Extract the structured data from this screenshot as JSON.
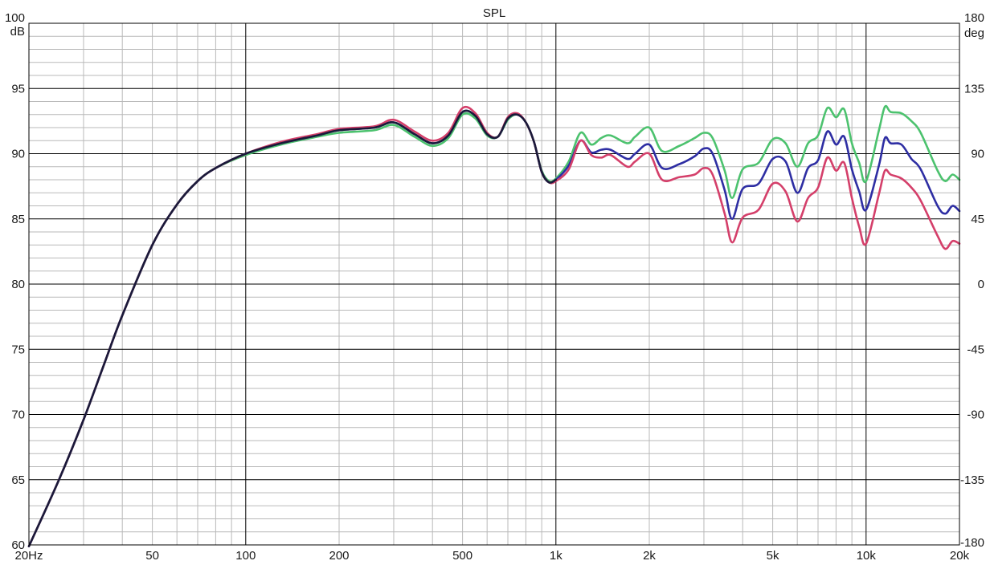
{
  "chart_data": {
    "type": "line",
    "title": "SPL",
    "xscale": "log",
    "xlim": [
      20,
      20000
    ],
    "ylim": [
      60,
      100
    ],
    "y2lim": [
      -180,
      180
    ],
    "grid": true,
    "y_unit": "dB",
    "y2_unit": "deg",
    "x_ticks": [
      {
        "value": 20,
        "label": "20Hz"
      },
      {
        "value": 50,
        "label": "50"
      },
      {
        "value": 100,
        "label": "100"
      },
      {
        "value": 200,
        "label": "200"
      },
      {
        "value": 500,
        "label": "500"
      },
      {
        "value": 1000,
        "label": "1k"
      },
      {
        "value": 2000,
        "label": "2k"
      },
      {
        "value": 5000,
        "label": "5k"
      },
      {
        "value": 10000,
        "label": "10k"
      },
      {
        "value": 20000,
        "label": "20k"
      }
    ],
    "y_ticks": [
      {
        "value": 100,
        "label": "100"
      },
      {
        "value": 95,
        "label": "95"
      },
      {
        "value": 90,
        "label": "90"
      },
      {
        "value": 85,
        "label": "85"
      },
      {
        "value": 80,
        "label": "80"
      },
      {
        "value": 75,
        "label": "75"
      },
      {
        "value": 70,
        "label": "70"
      },
      {
        "value": 65,
        "label": "65"
      },
      {
        "value": 60,
        "label": "60"
      }
    ],
    "y2_ticks": [
      {
        "value": 180,
        "label": "180"
      },
      {
        "value": 135,
        "label": "135"
      },
      {
        "value": 90,
        "label": "90"
      },
      {
        "value": 45,
        "label": "45"
      },
      {
        "value": 0,
        "label": "0"
      },
      {
        "value": -45,
        "label": "-45"
      },
      {
        "value": -90,
        "label": "-90"
      },
      {
        "value": -135,
        "label": "-135"
      },
      {
        "value": -180,
        "label": "-180"
      }
    ],
    "series": [
      {
        "color": "#4cc26e",
        "x": [
          20,
          25,
          30,
          35,
          40,
          50,
          60,
          70,
          80,
          100,
          130,
          170,
          200,
          260,
          300,
          350,
          400,
          450,
          500,
          550,
          600,
          650,
          700,
          750,
          800,
          850,
          900,
          950,
          1000,
          1100,
          1200,
          1300,
          1400,
          1500,
          1700,
          1800,
          2000,
          2200,
          2500,
          2800,
          3000,
          3200,
          3500,
          3700,
          4000,
          4500,
          5000,
          5500,
          6000,
          6500,
          7000,
          7500,
          8000,
          8500,
          9000,
          9500,
          10000,
          11000,
          11500,
          12000,
          13000,
          14000,
          15000,
          17000,
          18000,
          19000,
          20000
        ],
        "y": [
          59.9,
          65.0,
          69.6,
          73.9,
          77.6,
          83.0,
          86.1,
          87.9,
          88.9,
          89.9,
          90.7,
          91.3,
          91.6,
          91.8,
          92.2,
          91.3,
          90.6,
          91.2,
          93.0,
          92.7,
          91.4,
          91.3,
          92.6,
          93.0,
          92.4,
          90.9,
          88.7,
          87.9,
          88.1,
          89.4,
          91.6,
          90.7,
          91.2,
          91.4,
          90.8,
          91.3,
          92.0,
          90.2,
          90.6,
          91.2,
          91.6,
          91.2,
          88.7,
          86.6,
          88.8,
          89.3,
          91.1,
          90.8,
          89.0,
          90.8,
          91.4,
          93.5,
          92.8,
          93.4,
          90.8,
          89.3,
          87.9,
          91.8,
          93.6,
          93.2,
          93.1,
          92.5,
          91.6,
          88.7,
          87.9,
          88.4,
          88.0
        ]
      },
      {
        "color": "#2e2ea3",
        "x": [
          20,
          25,
          30,
          35,
          40,
          50,
          60,
          70,
          80,
          100,
          130,
          170,
          200,
          260,
          300,
          350,
          400,
          450,
          500,
          550,
          600,
          650,
          700,
          750,
          800,
          850,
          900,
          950,
          1000,
          1100,
          1200,
          1300,
          1400,
          1500,
          1700,
          1800,
          2000,
          2200,
          2500,
          2800,
          3000,
          3200,
          3500,
          3700,
          4000,
          4500,
          5000,
          5500,
          6000,
          6500,
          7000,
          7500,
          8000,
          8500,
          9000,
          9500,
          10000,
          11000,
          11500,
          12000,
          13000,
          14000,
          15000,
          17000,
          18000,
          19000,
          20000
        ],
        "y": [
          59.9,
          65.0,
          69.6,
          73.9,
          77.6,
          83.0,
          86.1,
          87.9,
          88.9,
          90.0,
          90.8,
          91.4,
          91.8,
          92.0,
          92.4,
          91.5,
          90.8,
          91.4,
          93.2,
          92.9,
          91.5,
          91.3,
          92.7,
          93.0,
          92.4,
          90.9,
          88.6,
          87.8,
          88.0,
          89.1,
          91.0,
          90.1,
          90.3,
          90.3,
          89.6,
          90.0,
          90.7,
          88.9,
          89.2,
          89.8,
          90.4,
          90.0,
          87.2,
          85.0,
          87.3,
          87.7,
          89.6,
          89.4,
          87.0,
          88.9,
          89.5,
          91.7,
          90.7,
          91.3,
          88.8,
          87.1,
          85.7,
          89.1,
          91.2,
          90.8,
          90.7,
          89.6,
          88.8,
          86.0,
          85.4,
          86.0,
          85.6
        ]
      },
      {
        "color": "#d43f6a",
        "x": [
          20,
          25,
          30,
          35,
          40,
          50,
          60,
          70,
          80,
          100,
          130,
          170,
          200,
          260,
          300,
          350,
          400,
          450,
          500,
          550,
          600,
          650,
          700,
          750,
          800,
          850,
          900,
          950,
          1000,
          1100,
          1200,
          1300,
          1400,
          1500,
          1700,
          1800,
          2000,
          2200,
          2500,
          2800,
          3000,
          3200,
          3500,
          3700,
          4000,
          4500,
          5000,
          5500,
          6000,
          6500,
          7000,
          7500,
          8000,
          8500,
          9000,
          9500,
          10000,
          11000,
          11500,
          12000,
          13000,
          14000,
          15000,
          17000,
          18000,
          19000,
          20000
        ],
        "y": [
          59.9,
          65.0,
          69.6,
          73.9,
          77.6,
          83.0,
          86.1,
          87.9,
          88.9,
          90.0,
          90.9,
          91.5,
          91.9,
          92.1,
          92.6,
          91.7,
          91.0,
          91.6,
          93.5,
          93.1,
          91.6,
          91.3,
          92.8,
          93.1,
          92.4,
          90.9,
          88.6,
          87.8,
          87.9,
          88.8,
          91.0,
          89.9,
          89.7,
          89.9,
          89.0,
          89.4,
          90.0,
          88.0,
          88.2,
          88.4,
          88.9,
          88.4,
          85.4,
          83.2,
          85.1,
          85.7,
          87.7,
          87.1,
          84.8,
          86.6,
          87.4,
          89.7,
          88.7,
          89.3,
          86.6,
          84.4,
          83.1,
          86.9,
          88.7,
          88.4,
          88.1,
          87.4,
          86.4,
          83.7,
          82.7,
          83.3,
          83.1
        ]
      },
      {
        "color": "#1a1a3a",
        "x": [
          20,
          25,
          30,
          35,
          40,
          50,
          60,
          70,
          80,
          100,
          130,
          170,
          200,
          260,
          300,
          350,
          400,
          450,
          500,
          550,
          600,
          650,
          700,
          750,
          800,
          850,
          900,
          950,
          1000
        ],
        "y": [
          59.9,
          65.0,
          69.6,
          73.9,
          77.6,
          83.0,
          86.1,
          87.9,
          88.9,
          90.0,
          90.8,
          91.4,
          91.8,
          92.0,
          92.4,
          91.5,
          90.8,
          91.4,
          93.2,
          92.9,
          91.5,
          91.3,
          92.7,
          93.0,
          92.4,
          90.9,
          88.6,
          87.8,
          88.0
        ]
      }
    ]
  }
}
